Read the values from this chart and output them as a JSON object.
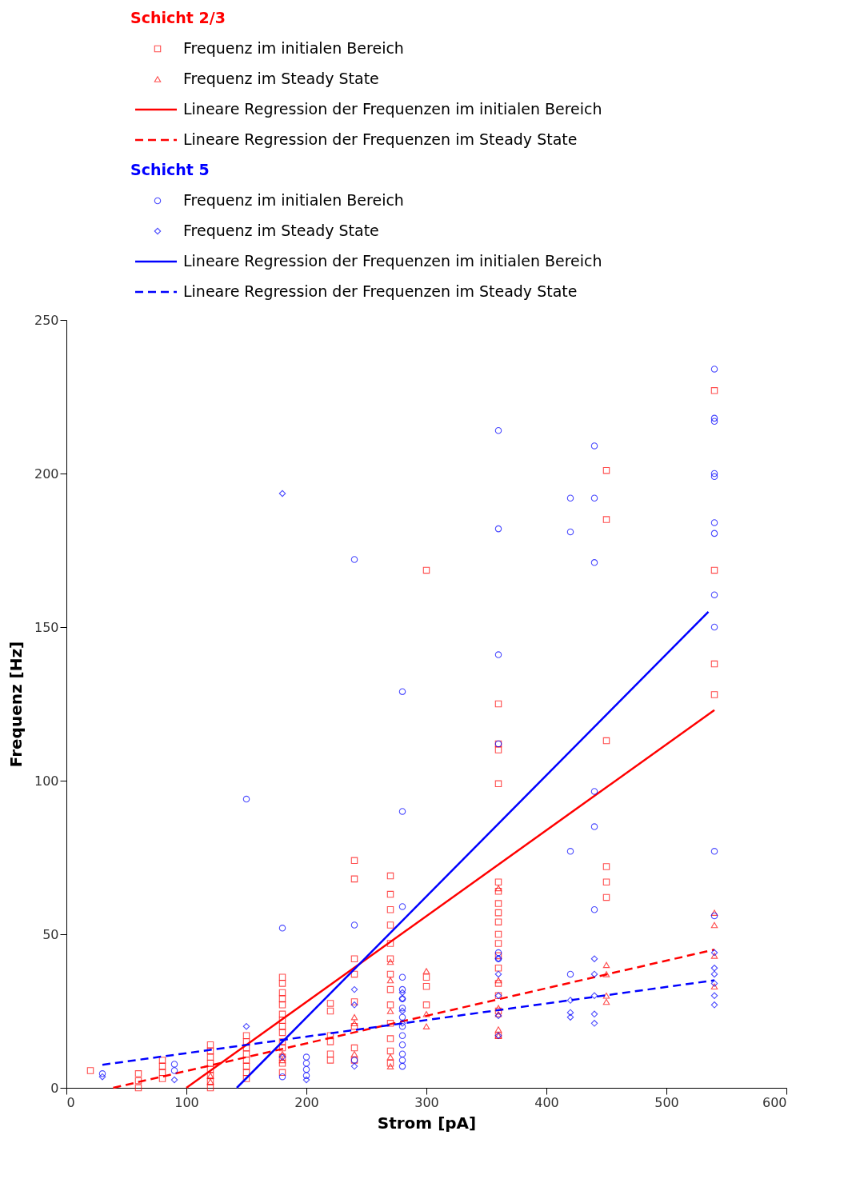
{
  "chart_data": {
    "type": "scatter",
    "xlabel": "Strom [pA]",
    "ylabel": "Frequenz [Hz]",
    "legend_title": [
      "Schicht 2/3",
      "Schicht 5"
    ],
    "legend": "top",
    "grid": false,
    "xlim": [
      0,
      600
    ],
    "xticks": [
      0,
      100,
      200,
      300,
      400,
      500,
      600
    ],
    "ylim": [
      0,
      250
    ],
    "yticks": [
      0,
      50,
      100,
      150,
      200,
      250
    ],
    "series": [
      {
        "name": "Frequenz im initialen Bereich",
        "marker": "square",
        "color": "#ff0000",
        "x": [
          20,
          60,
          60,
          60,
          80,
          80,
          80,
          80,
          120,
          120,
          120,
          120,
          120,
          120,
          120,
          120,
          150,
          150,
          150,
          150,
          150,
          150,
          150,
          150,
          180,
          180,
          180,
          180,
          180,
          180,
          180,
          180,
          180,
          180,
          180,
          180,
          180,
          180,
          220,
          220,
          220,
          220,
          220,
          220,
          240,
          240,
          240,
          240,
          240,
          240,
          240,
          240,
          270,
          270,
          270,
          270,
          270,
          270,
          270,
          270,
          270,
          270,
          270,
          270,
          270,
          300,
          300,
          300,
          300,
          360,
          360,
          360,
          360,
          360,
          360,
          360,
          360,
          360,
          360,
          360,
          360,
          360,
          360,
          360,
          360,
          360,
          450,
          450,
          450,
          450,
          450,
          450,
          540,
          540,
          540,
          540
        ],
        "values": [
          5.6,
          4.6,
          2.3,
          0,
          9,
          7,
          5,
          3,
          14,
          12,
          10,
          8,
          6,
          4,
          2,
          0,
          17,
          15,
          13,
          11,
          9,
          7,
          5,
          3,
          36,
          34,
          31,
          29,
          27,
          24,
          22,
          20,
          18,
          15,
          13,
          10,
          8,
          5,
          27.5,
          25,
          17,
          15,
          11,
          9,
          74,
          68,
          42,
          37,
          28,
          20,
          13,
          9,
          69,
          63,
          58,
          53,
          47,
          42,
          37,
          32,
          27,
          21,
          16,
          12,
          8,
          168.5,
          36,
          33,
          27,
          125,
          112,
          110,
          99,
          67,
          64,
          60,
          57,
          54,
          50,
          47,
          43,
          39,
          34,
          30,
          25,
          17,
          201,
          185,
          113,
          72,
          67,
          62,
          227,
          168.5,
          138,
          128
        ]
      },
      {
        "name": "Frequenz im Steady State",
        "marker": "triangle",
        "color": "#ff0000",
        "x": [
          120,
          120,
          180,
          180,
          240,
          240,
          240,
          270,
          270,
          270,
          270,
          270,
          300,
          300,
          300,
          360,
          360,
          360,
          360,
          360,
          360,
          450,
          450,
          450,
          450,
          540,
          540,
          540,
          540
        ],
        "values": [
          2,
          4,
          9,
          11,
          23,
          21,
          11,
          41,
          35,
          25,
          10,
          7,
          38,
          24,
          20,
          65,
          35,
          26,
          24,
          19,
          17,
          40,
          37,
          30,
          28,
          57,
          53,
          43,
          33
        ]
      },
      {
        "name": "Lineare Regression der Frequenzen im initialen Bereich",
        "type": "line",
        "line_style": "solid",
        "color": "#ff0000",
        "x": [
          100,
          540
        ],
        "values": [
          0,
          123
        ]
      },
      {
        "name": "Lineare Regression der Frequenzen im Steady State",
        "type": "line",
        "line_style": "dashed",
        "color": "#ff0000",
        "x": [
          39,
          540
        ],
        "values": [
          0,
          45
        ]
      },
      {
        "name": "Frequenz im initialen Bereich",
        "marker": "circle",
        "color": "#0000ff",
        "x": [
          30,
          90,
          90,
          150,
          180,
          180,
          200,
          200,
          200,
          200,
          240,
          240,
          240,
          280,
          280,
          280,
          280,
          280,
          280,
          280,
          280,
          280,
          280,
          280,
          280,
          280,
          280,
          360,
          360,
          360,
          360,
          360,
          360,
          420,
          420,
          420,
          420,
          440,
          440,
          440,
          440,
          440,
          440,
          540,
          540,
          540,
          540,
          540,
          540,
          540,
          540,
          540,
          540,
          540
        ],
        "values": [
          4.6,
          7.7,
          5.6,
          94,
          52,
          3.6,
          10,
          8,
          6,
          4,
          172,
          53,
          9,
          129,
          90,
          59,
          36,
          32,
          29,
          26,
          23,
          20,
          17,
          14,
          11,
          9,
          7,
          214,
          182,
          141,
          112,
          44,
          42,
          192,
          181,
          77,
          37,
          209,
          192,
          171,
          96.5,
          85,
          58,
          234,
          218,
          217,
          200,
          199,
          184,
          180.5,
          160.5,
          150,
          77,
          56
        ]
      },
      {
        "name": "Frequenz im Steady State",
        "marker": "diamond",
        "color": "#0000ff",
        "x": [
          30,
          90,
          150,
          180,
          180,
          200,
          240,
          240,
          240,
          280,
          280,
          280,
          280,
          360,
          360,
          360,
          360,
          360,
          420,
          420,
          420,
          440,
          440,
          440,
          440,
          440,
          540,
          540,
          540,
          540,
          540,
          540
        ],
        "values": [
          3.6,
          2.6,
          20,
          193.5,
          10,
          2.6,
          32,
          27,
          7,
          31,
          29,
          25,
          21,
          42,
          37,
          30,
          23.5,
          17,
          28.5,
          24.5,
          23,
          42,
          37,
          30,
          24,
          21,
          44,
          39,
          37,
          34,
          30,
          27
        ]
      },
      {
        "name": "Lineare Regression der Frequenzen im initialen Bereich",
        "type": "line",
        "line_style": "solid",
        "color": "#0000ff",
        "x": [
          142,
          535
        ],
        "values": [
          0,
          155
        ]
      },
      {
        "name": "Lineare Regression der Frequenzen im Steady State",
        "type": "line",
        "line_style": "dashed",
        "color": "#0000ff",
        "x": [
          30,
          540
        ],
        "values": [
          7.5,
          35
        ]
      }
    ]
  }
}
